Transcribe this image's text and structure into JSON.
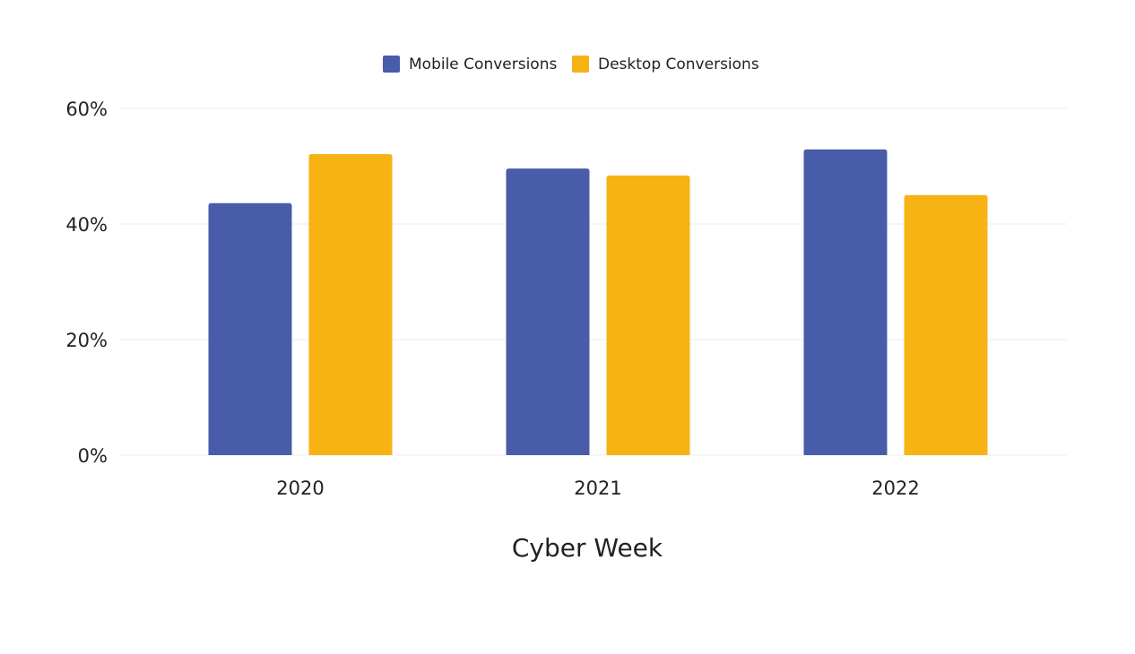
{
  "chart_data": {
    "type": "bar",
    "title": "",
    "xlabel": "Cyber Week",
    "ylabel": "",
    "categories": [
      "2020",
      "2021",
      "2022"
    ],
    "series": [
      {
        "name": "Mobile Conversions",
        "color": "#485ca9",
        "values": [
          43.6,
          49.6,
          52.9
        ]
      },
      {
        "name": "Desktop Conversions",
        "color": "#f7b214",
        "values": [
          52.1,
          48.4,
          45.0
        ]
      }
    ],
    "ylim": [
      0,
      60
    ],
    "yticks": [
      "0%",
      "20%",
      "40%",
      "60%"
    ],
    "grid": true,
    "legend": "top-center"
  }
}
